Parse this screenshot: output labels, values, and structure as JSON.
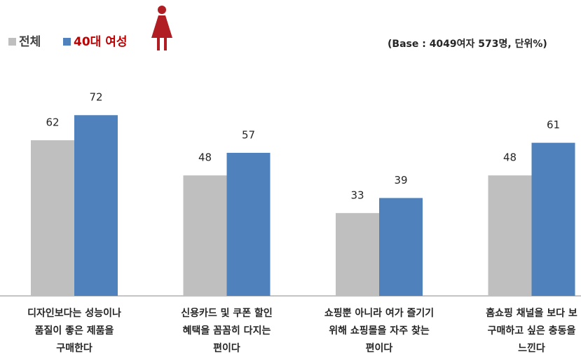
{
  "chart_data": {
    "type": "bar",
    "note": "(Base : 4049여자 573명, 단위%)",
    "categories": [
      [
        "디자인보다는 성능이나",
        "품질이 좋은 제품을",
        "구매한다"
      ],
      [
        "신용카드 및 쿠폰 할인",
        "혜택을 꼼꼼히 다지는",
        "편이다"
      ],
      [
        "쇼핑뿐 아니라 여가 즐기기",
        "위해 쇼핑몰을 자주 찾는",
        "편이다"
      ],
      [
        "홈쇼핑 채널을 보다 보",
        "구매하고 싶은 충동을",
        "느낀다"
      ]
    ],
    "series": [
      {
        "name": "전체",
        "color": "#bfbfbf",
        "values": [
          62,
          48,
          33,
          48
        ]
      },
      {
        "name": "40대 여성",
        "color": "#4f81bd",
        "values": [
          72,
          57,
          39,
          61
        ]
      }
    ],
    "ylim": [
      0,
      100
    ]
  }
}
